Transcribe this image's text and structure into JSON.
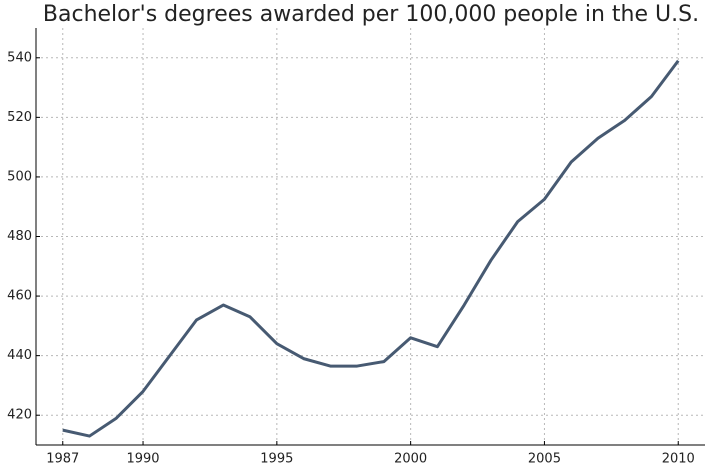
{
  "chart_data": {
    "type": "line",
    "title": "Bachelor's degrees awarded per 100,000 people in the U.S.",
    "x": [
      1987,
      1988,
      1989,
      1990,
      1991,
      1992,
      1993,
      1994,
      1995,
      1996,
      1997,
      1998,
      1999,
      2000,
      2001,
      2002,
      2003,
      2004,
      2005,
      2006,
      2007,
      2008,
      2009,
      2010
    ],
    "series": [
      {
        "color": "#475a72",
        "values": [
          415,
          413,
          419,
          428,
          440,
          452,
          457,
          453,
          444,
          439,
          436.5,
          436.5,
          438,
          446,
          443,
          457,
          472,
          485,
          492.5,
          505,
          513,
          519,
          527,
          539
        ]
      }
    ],
    "xlim": [
      1986,
      2011
    ],
    "xticks": [
      1987,
      1990,
      1995,
      2000,
      2005,
      2010
    ],
    "ylim": [
      410,
      550
    ],
    "yticks": [
      420,
      440,
      460,
      480,
      500,
      520,
      540
    ],
    "grid": true
  }
}
